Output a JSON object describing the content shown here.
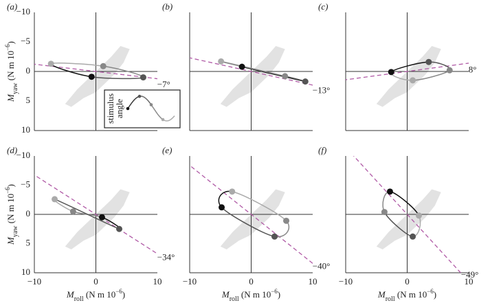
{
  "chart_data": [
    {
      "type": "scatter",
      "label": "(a)",
      "angle": -7,
      "angle_label": "−7°",
      "xlim": [
        -10,
        10
      ],
      "ylim": [
        10,
        -10
      ],
      "yticks": [
        {
          "value": -10,
          "label": "−10"
        },
        {
          "value": -5,
          "label": "−5"
        },
        0,
        5,
        10
      ],
      "ylabel": [
        "M",
        "yaw",
        " (N m 10",
        "−6",
        ")"
      ],
      "inset_text": [
        "stimulus",
        "angle"
      ],
      "x": [
        -7.3,
        1.2,
        7.7,
        -0.7
      ],
      "y": [
        -1.3,
        -0.9,
        1.0,
        0.9
      ],
      "colors": [
        "#aaaaaa",
        "#888888",
        "#555555",
        "#111111"
      ]
    },
    {
      "type": "scatter",
      "label": "(b)",
      "angle": -13,
      "angle_label": "−13°",
      "xlim": [
        -10,
        10
      ],
      "ylim": [
        10,
        -10
      ],
      "x": [
        -4.9,
        -1.5,
        8.8,
        5.5
      ],
      "y": [
        -1.7,
        -0.8,
        1.7,
        0.8
      ],
      "colors": [
        "#aaaaaa",
        "#111111",
        "#555555",
        "#888888"
      ]
    },
    {
      "type": "scatter",
      "label": "(c)",
      "angle": 8,
      "angle_label": "8°",
      "xlim": [
        -10,
        10
      ],
      "ylim": [
        10,
        -10
      ],
      "x": [
        -2.6,
        3.5,
        6.9,
        0.9
      ],
      "y": [
        0.1,
        -1.6,
        -0.2,
        1.5
      ],
      "colors": [
        "#111111",
        "#555555",
        "#888888",
        "#aaaaaa"
      ]
    },
    {
      "type": "scatter",
      "label": "(d)",
      "angle": -34,
      "angle_label": "−34°",
      "xlim": [
        -10,
        10
      ],
      "ylim": [
        10,
        -10
      ],
      "xticks": [
        {
          "value": -10,
          "label": "−10"
        },
        0,
        10
      ],
      "yticks": [
        {
          "value": -10,
          "label": "−10"
        },
        {
          "value": -5,
          "label": "−5"
        },
        0,
        5,
        10
      ],
      "ylabel": [
        "M",
        "yaw",
        " (N m 10",
        "−6",
        ")"
      ],
      "xlabel": [
        "M",
        "roll",
        " (N m 10",
        "−6",
        ")"
      ],
      "x": [
        -6.7,
        -3.7,
        1.0,
        3.8
      ],
      "y": [
        -2.6,
        -0.5,
        0.5,
        2.5
      ],
      "colors": [
        "#aaaaaa",
        "#888888",
        "#111111",
        "#555555"
      ]
    },
    {
      "type": "scatter",
      "label": "(e)",
      "angle": -40,
      "angle_label": "−40°",
      "xlim": [
        -10,
        10
      ],
      "ylim": [
        10,
        -10
      ],
      "xticks": [
        {
          "value": -10,
          "label": "−10"
        },
        0,
        10
      ],
      "xlabel": [
        "M",
        "roll",
        " (N m 10",
        "−6",
        ")"
      ],
      "x": [
        -3.1,
        5.7,
        3.8,
        -4.8
      ],
      "y": [
        -3.9,
        1.1,
        3.8,
        -1.2
      ],
      "colors": [
        "#aaaaaa",
        "#888888",
        "#555555",
        "#111111"
      ]
    },
    {
      "type": "scatter",
      "label": "(f)",
      "angle": -49,
      "angle_label": "−49°",
      "xlim": [
        -10,
        10
      ],
      "ylim": [
        10,
        -10
      ],
      "xticks": [
        {
          "value": -10,
          "label": "−10"
        },
        0,
        10
      ],
      "xlabel": [
        "M",
        "roll",
        " (N m 10",
        "−6",
        ")"
      ],
      "x": [
        -2.8,
        1.9,
        0.9,
        -3.7
      ],
      "y": [
        -3.9,
        0.2,
        3.8,
        -0.4
      ],
      "colors": [
        "#111111",
        "#aaaaaa",
        "#555555",
        "#888888"
      ]
    }
  ]
}
